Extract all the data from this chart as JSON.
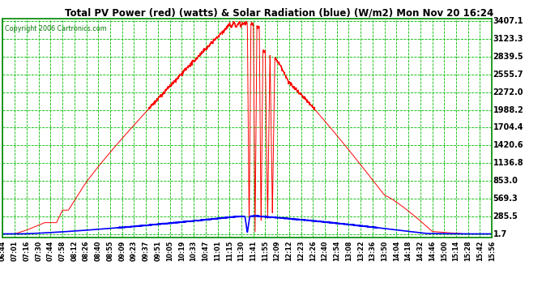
{
  "title": "Total PV Power (red) (watts) & Solar Radiation (blue) (W/m2) Mon Nov 20 16:24",
  "copyright": "Copyright 2006 Cartronics.com",
  "yticks": [
    1.7,
    285.5,
    569.3,
    853.0,
    1136.8,
    1420.6,
    1704.4,
    1988.2,
    2272.0,
    2555.7,
    2839.5,
    3123.3,
    3407.1
  ],
  "ymin": 1.7,
  "ymax": 3407.1,
  "xtick_labels": [
    "06:44",
    "07:01",
    "07:16",
    "07:30",
    "07:44",
    "07:58",
    "08:12",
    "08:26",
    "08:40",
    "08:55",
    "09:09",
    "09:23",
    "09:37",
    "09:51",
    "10:05",
    "10:19",
    "10:33",
    "10:47",
    "11:01",
    "11:15",
    "11:30",
    "11:41",
    "11:55",
    "12:09",
    "12:12",
    "12:23",
    "12:26",
    "12:40",
    "12:54",
    "13:08",
    "13:22",
    "13:36",
    "13:50",
    "14:04",
    "14:18",
    "14:32",
    "14:46",
    "15:00",
    "15:14",
    "15:28",
    "15:42",
    "15:56"
  ],
  "plot_bg": "#ffffff",
  "fig_bg": "#ffffff",
  "grid_color_major": "#00bb00",
  "grid_color_minor": "#00bb00",
  "title_color": "#000000",
  "red_line_color": "#ff0000",
  "blue_line_color": "#0000ff",
  "copyright_color": "#007700",
  "border_color": "#008800"
}
